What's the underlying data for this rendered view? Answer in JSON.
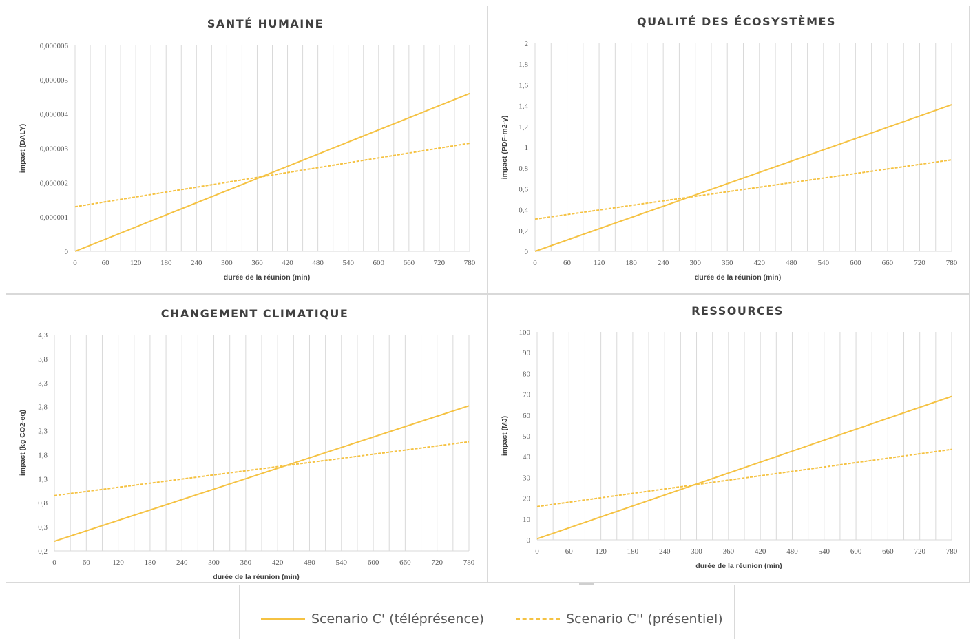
{
  "colors": {
    "series": "#f5c242",
    "grid": "#d9d9d9",
    "axis_text": "#595959",
    "title": "#404040"
  },
  "legend": {
    "items": [
      {
        "label": "Scenario C' (téléprésence)",
        "style": "solid"
      },
      {
        "label": "Scenario C'' (présentiel)",
        "style": "dashed"
      }
    ]
  },
  "chart_data": [
    {
      "type": "line",
      "title": "SANTÉ HUMAINE",
      "xlabel": "durée de la réunion (min)",
      "ylabel": "impact (DALY)",
      "xlim": [
        0,
        780
      ],
      "ylim": [
        0,
        6e-06
      ],
      "x_ticks": [
        "0",
        "60",
        "120",
        "180",
        "240",
        "300",
        "360",
        "420",
        "480",
        "540",
        "600",
        "660",
        "720",
        "780"
      ],
      "y_ticks": [
        "0",
        "0,000001",
        "0,000002",
        "0,000003",
        "0,000004",
        "0,000005",
        "0,000006"
      ],
      "y_tick_values": [
        0,
        1e-06,
        2e-06,
        3e-06,
        4e-06,
        5e-06,
        6e-06
      ],
      "series": [
        {
          "name": "Scenario C' (téléprésence)",
          "style": "solid",
          "x": [
            0,
            780
          ],
          "y": [
            0,
            4.6e-06
          ]
        },
        {
          "name": "Scenario C'' (présentiel)",
          "style": "dashed",
          "x": [
            0,
            780
          ],
          "y": [
            1.3e-06,
            3.15e-06
          ]
        }
      ]
    },
    {
      "type": "line",
      "title": "QUALITÉ DES ÉCOSYSTÈMES",
      "xlabel": "durée de la réunion (min)",
      "ylabel": "impact (PDF-m2-y)",
      "xlim": [
        0,
        780
      ],
      "ylim": [
        0,
        2
      ],
      "x_ticks": [
        "0",
        "60",
        "120",
        "180",
        "240",
        "300",
        "360",
        "420",
        "480",
        "540",
        "600",
        "660",
        "720",
        "780"
      ],
      "y_ticks": [
        "0",
        "0,2",
        "0,4",
        "0,6",
        "0,8",
        "1",
        "1,2",
        "1,4",
        "1,6",
        "1,8",
        "2"
      ],
      "y_tick_values": [
        0,
        0.2,
        0.4,
        0.6,
        0.8,
        1,
        1.2,
        1.4,
        1.6,
        1.8,
        2
      ],
      "series": [
        {
          "name": "Scenario C' (téléprésence)",
          "style": "solid",
          "x": [
            0,
            780
          ],
          "y": [
            0,
            1.41
          ]
        },
        {
          "name": "Scenario C'' (présentiel)",
          "style": "dashed",
          "x": [
            0,
            780
          ],
          "y": [
            0.31,
            0.88
          ]
        }
      ]
    },
    {
      "type": "line",
      "title": "CHANGEMENT CLIMATIQUE",
      "xlabel": "durée de la réunion (min)",
      "ylabel": "impact (kg CO2-eq)",
      "xlim": [
        0,
        780
      ],
      "ylim": [
        -0.2,
        4.3
      ],
      "x_ticks": [
        "0",
        "60",
        "120",
        "180",
        "240",
        "300",
        "360",
        "420",
        "480",
        "540",
        "600",
        "660",
        "720",
        "780"
      ],
      "y_ticks": [
        "-0,2",
        "0,3",
        "0,8",
        "1,3",
        "1,8",
        "2,3",
        "2,8",
        "3,3",
        "3,8",
        "4,3"
      ],
      "y_tick_values": [
        -0.2,
        0.3,
        0.8,
        1.3,
        1.8,
        2.3,
        2.8,
        3.3,
        3.8,
        4.3
      ],
      "series": [
        {
          "name": "Scenario C' (téléprésence)",
          "style": "solid",
          "x": [
            0,
            780
          ],
          "y": [
            0,
            2.82
          ]
        },
        {
          "name": "Scenario C'' (présentiel)",
          "style": "dashed",
          "x": [
            0,
            780
          ],
          "y": [
            0.95,
            2.07
          ]
        }
      ]
    },
    {
      "type": "line",
      "title": "RESSOURCES",
      "xlabel": "durée de la réunion (min)",
      "ylabel": "impact (MJ)",
      "xlim": [
        0,
        780
      ],
      "ylim": [
        0,
        100
      ],
      "x_ticks": [
        "0",
        "60",
        "120",
        "180",
        "240",
        "300",
        "360",
        "420",
        "480",
        "540",
        "600",
        "660",
        "720",
        "780"
      ],
      "y_ticks": [
        "0",
        "10",
        "20",
        "30",
        "40",
        "50",
        "60",
        "70",
        "80",
        "90",
        "100"
      ],
      "y_tick_values": [
        0,
        10,
        20,
        30,
        40,
        50,
        60,
        70,
        80,
        90,
        100
      ],
      "series": [
        {
          "name": "Scenario C' (téléprésence)",
          "style": "solid",
          "x": [
            0,
            780
          ],
          "y": [
            0.5,
            69
          ]
        },
        {
          "name": "Scenario C'' (présentiel)",
          "style": "dashed",
          "x": [
            0,
            780
          ],
          "y": [
            16,
            43.5
          ]
        }
      ]
    }
  ]
}
